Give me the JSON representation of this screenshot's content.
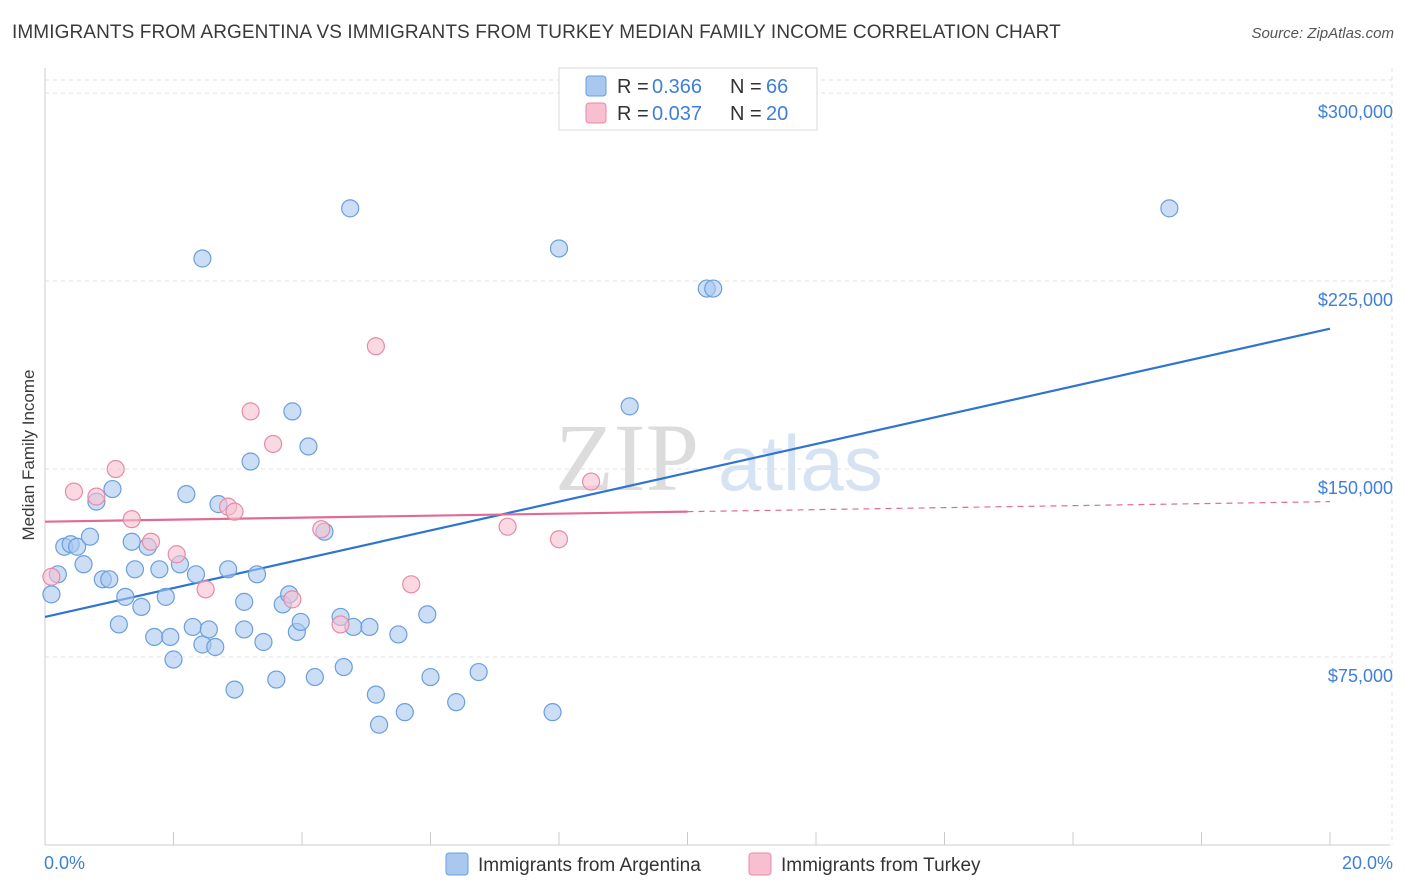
{
  "chart_data": {
    "type": "scatter",
    "title": "IMMIGRANTS FROM ARGENTINA VS IMMIGRANTS FROM TURKEY MEDIAN FAMILY INCOME CORRELATION CHART",
    "source": "Source: ZipAtlas.com",
    "watermark": {
      "zip": "ZIP",
      "atlas": "atlas"
    },
    "ylabel": "Median Family Income",
    "xlabel": "",
    "xlim": [
      0,
      20
    ],
    "ylim": [
      0,
      310000
    ],
    "x_tick_labels": [
      {
        "value": 0,
        "label": "0.0%"
      },
      {
        "value": 20,
        "label": "20.0%"
      }
    ],
    "y_tick_labels": [
      {
        "value": 75000,
        "label": "$75,000"
      },
      {
        "value": 150000,
        "label": "$150,000"
      },
      {
        "value": 225000,
        "label": "$225,000"
      },
      {
        "value": 300000,
        "label": "$300,000"
      }
    ],
    "colors": {
      "argentina_fill": "#a9c8f0",
      "argentina_stroke": "#6a9fdc",
      "argentina_line": "#2f74d0",
      "turkey_fill": "#f7bfd0",
      "turkey_stroke": "#e88aa8",
      "turkey_line": "#e06c94",
      "accent_text": "#3f7fd6",
      "grid": "#e2e2e2"
    },
    "legend_box": {
      "rows": [
        {
          "r_label": "R = ",
          "r_value": "0.366",
          "n_label": "N = ",
          "n_value": "66"
        },
        {
          "r_label": "R = ",
          "r_value": "0.037",
          "n_label": "N = ",
          "n_value": "20"
        }
      ]
    },
    "series": [
      {
        "name": "Immigrants from Argentina",
        "points": [
          [
            0.1,
            100000
          ],
          [
            0.2,
            108000
          ],
          [
            0.3,
            119000
          ],
          [
            0.4,
            120000
          ],
          [
            0.5,
            119000
          ],
          [
            0.6,
            112000
          ],
          [
            0.7,
            123000
          ],
          [
            0.8,
            137000
          ],
          [
            0.9,
            106000
          ],
          [
            1.0,
            106000
          ],
          [
            1.05,
            142000
          ],
          [
            1.15,
            88000
          ],
          [
            1.25,
            99000
          ],
          [
            1.35,
            121000
          ],
          [
            1.4,
            110000
          ],
          [
            1.5,
            95000
          ],
          [
            1.6,
            119000
          ],
          [
            1.7,
            83000
          ],
          [
            1.78,
            110000
          ],
          [
            1.88,
            99000
          ],
          [
            1.95,
            83000
          ],
          [
            2.0,
            74000
          ],
          [
            2.1,
            112000
          ],
          [
            2.2,
            140000
          ],
          [
            2.3,
            87000
          ],
          [
            2.35,
            108000
          ],
          [
            2.45,
            80000
          ],
          [
            2.55,
            86000
          ],
          [
            2.65,
            79000
          ],
          [
            2.7,
            136000
          ],
          [
            2.85,
            110000
          ],
          [
            2.95,
            62000
          ],
          [
            3.1,
            97000
          ],
          [
            3.1,
            86000
          ],
          [
            3.2,
            153000
          ],
          [
            3.3,
            108000
          ],
          [
            3.4,
            81000
          ],
          [
            3.6,
            66000
          ],
          [
            3.7,
            96000
          ],
          [
            3.85,
            173000
          ],
          [
            3.92,
            85000
          ],
          [
            3.98,
            89000
          ],
          [
            4.1,
            159000
          ],
          [
            4.2,
            67000
          ],
          [
            4.35,
            125000
          ],
          [
            4.6,
            91000
          ],
          [
            4.65,
            71000
          ],
          [
            4.8,
            87000
          ],
          [
            5.05,
            87000
          ],
          [
            5.15,
            60000
          ],
          [
            5.2,
            48000
          ],
          [
            5.5,
            84000
          ],
          [
            5.6,
            53000
          ],
          [
            5.95,
            92000
          ],
          [
            6.0,
            67000
          ],
          [
            6.4,
            57000
          ],
          [
            6.75,
            69000
          ],
          [
            7.9,
            53000
          ],
          [
            2.45,
            234000
          ],
          [
            4.75,
            254000
          ],
          [
            8.0,
            238000
          ],
          [
            9.1,
            175000
          ],
          [
            10.3,
            222000
          ],
          [
            10.4,
            222000
          ],
          [
            17.5,
            254000
          ],
          [
            3.8,
            100000
          ]
        ]
      },
      {
        "name": "Immigrants from Turkey",
        "points": [
          [
            0.1,
            107000
          ],
          [
            0.45,
            141000
          ],
          [
            0.8,
            139000
          ],
          [
            1.1,
            150000
          ],
          [
            1.35,
            130000
          ],
          [
            1.65,
            121000
          ],
          [
            2.05,
            116000
          ],
          [
            2.5,
            102000
          ],
          [
            2.85,
            135000
          ],
          [
            2.95,
            133000
          ],
          [
            3.2,
            173000
          ],
          [
            3.55,
            160000
          ],
          [
            3.85,
            98000
          ],
          [
            4.3,
            126000
          ],
          [
            4.6,
            88000
          ],
          [
            5.15,
            199000
          ],
          [
            5.7,
            104000
          ],
          [
            7.2,
            127000
          ],
          [
            8.0,
            122000
          ],
          [
            8.5,
            145000
          ]
        ]
      }
    ],
    "trend_lines": [
      {
        "series": "Immigrants from Argentina",
        "x": [
          0,
          20
        ],
        "y": [
          91000,
          206000
        ]
      },
      {
        "series": "Immigrants from Turkey",
        "x": [
          0,
          10
        ],
        "y": [
          129000,
          133000
        ],
        "dashed_extension_x": [
          10,
          20
        ],
        "dashed_extension_y": [
          133000,
          137000
        ]
      }
    ],
    "legend": [
      "Immigrants from Argentina",
      "Immigrants from Turkey"
    ]
  }
}
